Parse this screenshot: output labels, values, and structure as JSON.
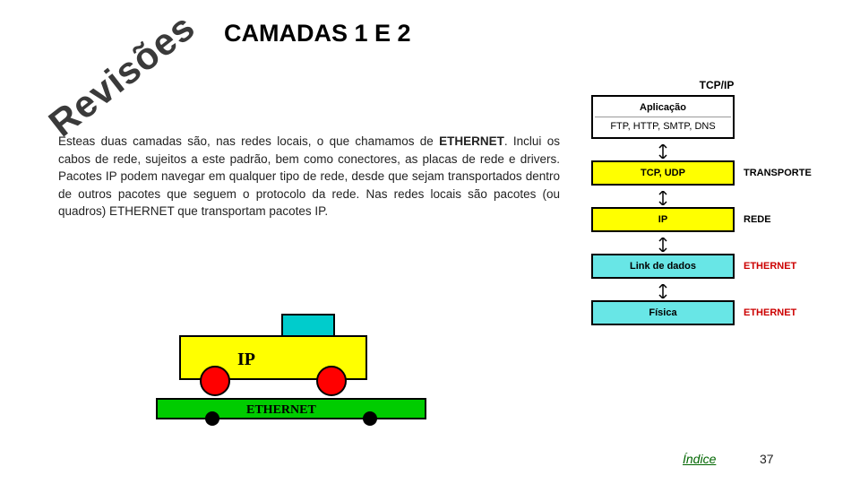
{
  "stamp": "Revisões",
  "title": "CAMADAS 1 E 2",
  "paragraph_pre": "Esteas duas camadas são, nas redes locais, o que chamamos de ",
  "paragraph_bold": "ETHERNET",
  "paragraph_post": ". Inclui os cabos de rede, sujeitos a este padrão, bem como conectores, as placas de rede e drivers. Pacotes IP podem navegar em qualquer tipo de rede, desde que sejam transportados dentro de outros pacotes que seguem o protocolo da rede. Nas redes locais são pacotes (ou quadros) ETHERNET que transportam pacotes IP.",
  "tcpip": {
    "header": "TCP/IP",
    "layers": [
      {
        "text": "Aplicação",
        "sub": "FTP, HTTP, SMTP, DNS",
        "fill": "#ffffff",
        "label": "",
        "label_color": "#000000"
      },
      {
        "text": "TCP, UDP",
        "sub": "",
        "fill": "#ffff00",
        "label": "TRANSPORTE",
        "label_color": "#000000"
      },
      {
        "text": "IP",
        "sub": "",
        "fill": "#ffff00",
        "label": "REDE",
        "label_color": "#000000"
      },
      {
        "text": "Link de dados",
        "sub": "",
        "fill": "#68e6e6",
        "label": "ETHERNET",
        "label_color": "#cc0000"
      },
      {
        "text": "Física",
        "sub": "",
        "fill": "#68e6e6",
        "label": "ETHERNET",
        "label_color": "#cc0000"
      }
    ]
  },
  "vehicle": {
    "ip_label": "IP",
    "eth_label": "ETHERNET",
    "colors": {
      "truck_body": "#ffff00",
      "ip_box": "#00cccc",
      "rail_flat": "#00cc00",
      "wheel": "#ff0000",
      "wheel_small": "#000000",
      "outline": "#000000"
    }
  },
  "footer": {
    "link": "Índice",
    "page": "37"
  }
}
